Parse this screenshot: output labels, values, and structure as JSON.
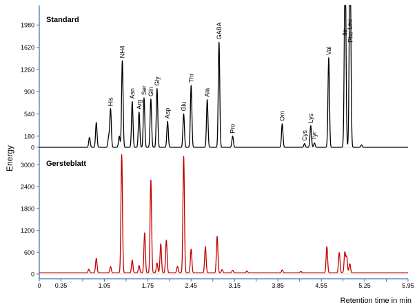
{
  "chart_data": [
    {
      "type": "line",
      "title": "Standard",
      "ylabel": "Energy",
      "xlabel": "Retention time in min",
      "ylim": [
        0,
        2250
      ],
      "yticks": [
        0,
        180,
        540,
        900,
        1260,
        1620,
        1980
      ],
      "xlim": [
        0,
        5.95
      ],
      "color": "#000000",
      "baseline": 0,
      "peaks": [
        {
          "x": 0.81,
          "y": 160
        },
        {
          "x": 0.92,
          "y": 400
        },
        {
          "x": 1.12,
          "y": 170
        },
        {
          "x": 1.15,
          "y": 620,
          "label": "His"
        },
        {
          "x": 1.29,
          "y": 180
        },
        {
          "x": 1.34,
          "y": 1400,
          "label": "NH4"
        },
        {
          "x": 1.5,
          "y": 740,
          "label": "Asn"
        },
        {
          "x": 1.61,
          "y": 570,
          "label": "Arg"
        },
        {
          "x": 1.69,
          "y": 800,
          "label": "Ser"
        },
        {
          "x": 1.8,
          "y": 780,
          "label": "Gln"
        },
        {
          "x": 1.9,
          "y": 950,
          "label": "Gly"
        },
        {
          "x": 2.07,
          "y": 420,
          "label": "Asp"
        },
        {
          "x": 2.33,
          "y": 540,
          "label": "Glu"
        },
        {
          "x": 2.45,
          "y": 1000,
          "label": "Thr"
        },
        {
          "x": 2.71,
          "y": 770,
          "label": "Ala"
        },
        {
          "x": 2.9,
          "y": 1700,
          "label": "GABA"
        },
        {
          "x": 3.12,
          "y": 180,
          "label": "Pro"
        },
        {
          "x": 3.92,
          "y": 380,
          "label": "Orn"
        },
        {
          "x": 4.28,
          "y": 60,
          "label": "Cys"
        },
        {
          "x": 4.38,
          "y": 350,
          "label": "Lys"
        },
        {
          "x": 4.44,
          "y": 70,
          "label": "Tyr"
        },
        {
          "x": 4.67,
          "y": 1450,
          "label": "Val"
        },
        {
          "x": 4.93,
          "y": 1760,
          "label": "Ile"
        },
        {
          "x": 4.94,
          "y": 1700
        },
        {
          "x": 5.01,
          "y": 1860,
          "label": "Leu"
        },
        {
          "x": 5.02,
          "y": 1650,
          "label": "Phe"
        },
        {
          "x": 5.2,
          "y": 40
        }
      ]
    },
    {
      "type": "line",
      "title": "Gersteblatt",
      "ylabel": "Energy",
      "xlabel": "Retention time in min",
      "ylim": [
        0,
        3330
      ],
      "yticks": [
        0,
        600,
        1200,
        1800,
        2400,
        3000
      ],
      "xlim": [
        0,
        5.95
      ],
      "color": "#c00000",
      "baseline": 30,
      "peaks": [
        {
          "x": 0.8,
          "y": 100
        },
        {
          "x": 0.92,
          "y": 400
        },
        {
          "x": 1.15,
          "y": 170
        },
        {
          "x": 1.33,
          "y": 3250
        },
        {
          "x": 1.5,
          "y": 350
        },
        {
          "x": 1.61,
          "y": 200
        },
        {
          "x": 1.7,
          "y": 1100
        },
        {
          "x": 1.8,
          "y": 2550
        },
        {
          "x": 1.9,
          "y": 270
        },
        {
          "x": 1.96,
          "y": 800
        },
        {
          "x": 2.05,
          "y": 900
        },
        {
          "x": 2.23,
          "y": 180
        },
        {
          "x": 2.33,
          "y": 3200
        },
        {
          "x": 2.45,
          "y": 650
        },
        {
          "x": 2.68,
          "y": 720
        },
        {
          "x": 2.87,
          "y": 1000
        },
        {
          "x": 2.95,
          "y": 90
        },
        {
          "x": 3.12,
          "y": 70
        },
        {
          "x": 3.35,
          "y": 50
        },
        {
          "x": 3.92,
          "y": 80
        },
        {
          "x": 4.22,
          "y": 40
        },
        {
          "x": 4.64,
          "y": 720
        },
        {
          "x": 4.84,
          "y": 560
        },
        {
          "x": 4.93,
          "y": 560
        },
        {
          "x": 4.96,
          "y": 440
        },
        {
          "x": 5.01,
          "y": 250
        }
      ]
    }
  ],
  "x_ticks": [
    "0",
    "0.35",
    "1.05",
    "1.75",
    "2.45",
    "3.15",
    "3.85",
    "4.55",
    "5.25",
    "5.95"
  ],
  "x_tick_values": [
    0,
    0.35,
    1.05,
    1.75,
    2.45,
    3.15,
    3.85,
    4.55,
    5.25,
    5.95
  ],
  "x_minor_step": 0.35
}
